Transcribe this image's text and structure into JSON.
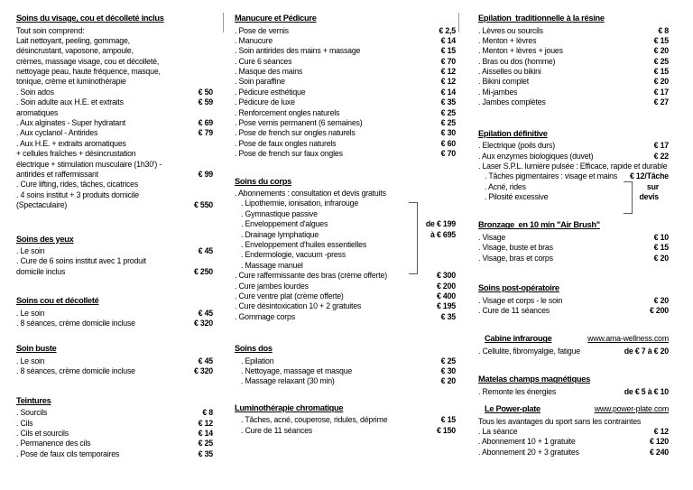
{
  "colors": {
    "background": "#ffffff",
    "text": "#000000"
  },
  "columns": [
    {
      "sections": [
        {
          "title": "Soins du visage, cou et décolleté inclus",
          "rows": [
            {
              "text": "Tout soin comprend:",
              "price": ""
            },
            {
              "text": "Lait nettoyant, peeling, gommage,",
              "price": ""
            },
            {
              "text": "désincrustant, vaposone, ampoule,",
              "price": ""
            },
            {
              "text": "crèmes, massage visage, cou et décolleté,",
              "price": ""
            },
            {
              "text": "nettoyage peau, haute fréquence, masque,",
              "price": ""
            },
            {
              "text": "tonique, crème et luminothérapie",
              "price": ""
            },
            {
              "text": ". Soin ados",
              "price": "€ 50"
            },
            {
              "text": ". Soin adulte aux H.E. et extraits",
              "price": "€ 59"
            },
            {
              "text": "aromatiques",
              "price": ""
            },
            {
              "text": ". Aux alginates - Super hydratant",
              "price": "€ 69"
            },
            {
              "text": ". Aux cyclanol - Antirides",
              "price": "€ 79"
            },
            {
              "text": ". Aux H.E. + extraits aromatiques",
              "price": ""
            },
            {
              "text": "+ cellules fraîches + désincrustation",
              "price": ""
            },
            {
              "text": "électrique + stimulation musculaire (1h30') -",
              "price": ""
            },
            {
              "text": "antirides et raffermissant",
              "price": "€ 99"
            },
            {
              "text": ". Cure lifting, rides, tâches, cicatrices",
              "price": ""
            },
            {
              "text": ". 4 soins institut + 3 produits domicile",
              "price": ""
            },
            {
              "text": "(Spectaculaire)",
              "price": "€ 550"
            }
          ]
        },
        {
          "title": "Soins des yeux",
          "rows": [
            {
              "text": ". Le soin",
              "price": "€ 45"
            },
            {
              "text": ". Cure de 6 soins institut avec 1 produit",
              "price": ""
            },
            {
              "text": "domicile inclus",
              "price": "€ 250"
            }
          ]
        },
        {
          "title": "Soins cou et décolleté",
          "rows": [
            {
              "text": ". Le soin",
              "price": "€ 45"
            },
            {
              "text": ". 8 séances, crème domicile incluse",
              "price": "€ 320"
            }
          ]
        },
        {
          "title": "Soin buste",
          "rows": [
            {
              "text": ". Le soin",
              "price": "€ 45"
            },
            {
              "text": ". 8 séances, crème domicile incluse",
              "price": "€ 320"
            }
          ]
        },
        {
          "title": "Teintures",
          "rows": [
            {
              "text": ". Sourcils",
              "price": "€ 8"
            },
            {
              "text": ". Cils",
              "price": "€ 12"
            },
            {
              "text": ". Cils et sourcils",
              "price": "€ 14"
            },
            {
              "text": ". Permanence des cils",
              "price": "€ 25"
            },
            {
              "text": ". Pose de faux cils temporaires",
              "price": "€ 35"
            }
          ]
        }
      ]
    },
    {
      "sections": [
        {
          "title": "Manucure et Pédicure",
          "rows": [
            {
              "text": ". Pose de vernis",
              "price": "€ 2,5"
            },
            {
              "text": ". Manucure",
              "price": "€ 14"
            },
            {
              "text": ". Soin antirides des mains + massage",
              "price": "€ 15"
            },
            {
              "text": ". Cure 6 séances",
              "price": "€ 70"
            },
            {
              "text": ". Masque des mains",
              "price": "€ 12"
            },
            {
              "text": ". Soin paraffine",
              "price": "€ 12"
            },
            {
              "text": ". Pédicure esthétique",
              "price": "€ 14"
            },
            {
              "text": ". Pédicure de luxe",
              "price": "€ 35"
            },
            {
              "text": ". Renforcement ongles naturels",
              "price": "€ 25"
            },
            {
              "text": ". Pose vernis permanent (6 semaines)",
              "price": "€ 25"
            },
            {
              "text": ". Pose de french sur ongles naturels",
              "price": "€ 30"
            },
            {
              "text": ". Pose de faux ongles naturels",
              "price": "€ 60"
            },
            {
              "text": ". Pose de french sur faux ongles",
              "price": "€ 70"
            }
          ]
        },
        {
          "title": "Soins du corps",
          "rows": [
            {
              "text": ". Abonnements : consultation et devis gratuits",
              "price": ""
            },
            {
              "text": ". Lipothermie, ionisation, infrarouge",
              "price": "",
              "indent": true
            },
            {
              "text": ". Gymnastique passive",
              "price": "",
              "indent": true
            },
            {
              "text": ". Enveloppement d'algues",
              "price": "de € 199",
              "indent": true
            },
            {
              "text": ". Drainage lymphatique",
              "price": "à € 695",
              "indent": true
            },
            {
              "text": ". Enveloppement d'huiles essentielles",
              "price": "",
              "indent": true
            },
            {
              "text": ". Endermologie, vacuum -press",
              "price": "",
              "indent": true
            },
            {
              "text": ". Massage manuel",
              "price": "",
              "indent": true
            },
            {
              "text": ". Cure raffermissante des bras (crème offerte)",
              "price": "€ 300"
            },
            {
              "text": ". Cure jambes lourdes",
              "price": "€ 200"
            },
            {
              "text": ". Cure ventre plat (crème offerte)",
              "price": "€ 400"
            },
            {
              "text": ". Cure désintoxication 10 + 2 gratuites",
              "price": "€ 195"
            },
            {
              "text": ". Gommage corps",
              "price": "€ 35"
            }
          ]
        },
        {
          "title": "Soins dos",
          "rows": [
            {
              "text": ". Epilation",
              "price": "€ 25",
              "indent": true
            },
            {
              "text": ". Nettoyage, massage et masque",
              "price": "€ 30",
              "indent": true
            },
            {
              "text": ". Massage relaxant (30 min)",
              "price": "€ 20",
              "indent": true
            }
          ]
        },
        {
          "title": "Luminothérapie chromatique",
          "rows": [
            {
              "text": ". Tâches, acné, couperose, ridules, déprime",
              "price": "€ 15",
              "indent": true
            },
            {
              "text": ". Cure de 11 séances",
              "price": "€ 150",
              "indent": true
            }
          ]
        }
      ]
    },
    {
      "sections": [
        {
          "title": "Epilation  traditionnelle à la résine",
          "rows": [
            {
              "text": ". Lèvres ou sourcils",
              "price": "€ 8"
            },
            {
              "text": ". Menton + lèvres",
              "price": "€ 15"
            },
            {
              "text": ". Menton + lèvres + joues",
              "price": "€ 20"
            },
            {
              "text": ". Bras ou dos (homme)",
              "price": "€ 25"
            },
            {
              "text": ". Aisselles ou bikini",
              "price": "€ 15"
            },
            {
              "text": ". Bikini complet",
              "price": "€ 20"
            },
            {
              "text": ". Mi-jambes",
              "price": "€ 17"
            },
            {
              "text": ". Jambes complètes",
              "price": "€ 27"
            }
          ]
        },
        {
          "title": "Epilation définitive",
          "rows": [
            {
              "text": ". Electrique (poils durs)",
              "price": "€ 17"
            },
            {
              "text": ". Aux enzymes biologiques (duvet)",
              "price": "€ 22"
            },
            {
              "text": ". Laser S.P.L. lumière pulsée : Efficace, rapide et durable",
              "price": ""
            },
            {
              "text": ". Tâches pigmentaires : visage et mains",
              "price": "€ 12/Tâche",
              "indent": true
            },
            {
              "text": ". Acné, rides",
              "price": "sur",
              "indent": true
            },
            {
              "text": ". Pilosité excessive",
              "price": "devis",
              "indent": true
            }
          ]
        },
        {
          "title": "Bronzage  en 10 min \"Air Brush\"",
          "rows": [
            {
              "text": ". Visage",
              "price": "€ 10"
            },
            {
              "text": ". Visage, buste et bras",
              "price": "€ 15"
            },
            {
              "text": ". Visage, bras et corps",
              "price": "€ 20"
            }
          ]
        },
        {
          "title": "Soins post-opératoire",
          "rows": [
            {
              "text": ". Visage et corps - le soin",
              "price": "€ 20"
            },
            {
              "text": ". Cure de 11 séances",
              "price": "€ 200"
            }
          ]
        },
        {
          "title": "Cabine infrarouge",
          "url": "www.ama-wellness.com",
          "title_indent": true,
          "rows": [
            {
              "text": ". Cellulite, fibromyalgie, fatigue",
              "price": "de € 7 à € 20"
            }
          ]
        },
        {
          "title": "Matelas champs magnétiques",
          "rows": [
            {
              "text": ". Remonte les énergies",
              "price": "de € 5 à € 10"
            }
          ]
        },
        {
          "title": "Le Power-plate",
          "url": "www.power-plate.com",
          "title_indent": true,
          "rows": [
            {
              "text": "Tous les avantages du sport sans les contraintes",
              "price": ""
            },
            {
              "text": ". La séance",
              "price": "€ 12"
            },
            {
              "text": ". Abonnement 10 + 1 gratuite",
              "price": "€ 120"
            },
            {
              "text": ". Abonnement 20 + 3 gratuites",
              "price": "€ 240"
            }
          ]
        }
      ]
    }
  ]
}
